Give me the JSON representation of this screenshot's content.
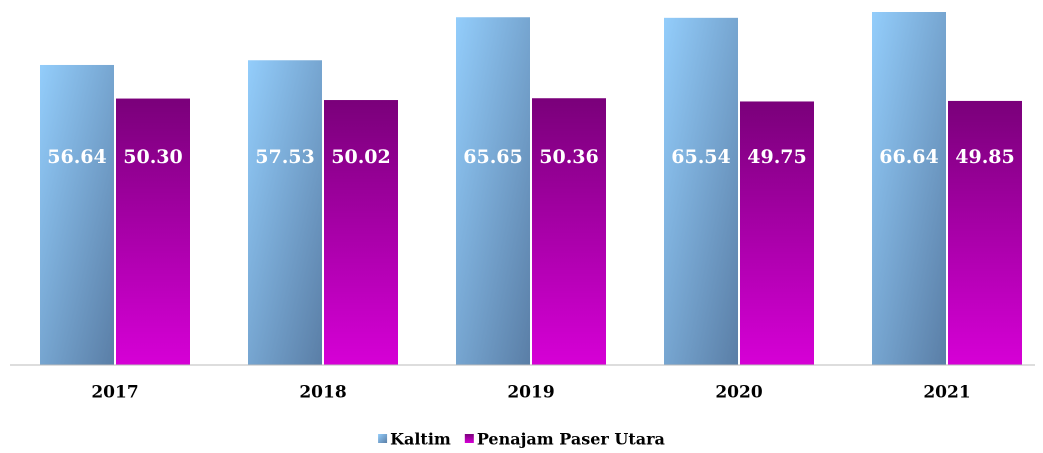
{
  "chart_data": {
    "type": "bar",
    "categories": [
      "2017",
      "2018",
      "2019",
      "2020",
      "2021"
    ],
    "series": [
      {
        "name": "Kaltim",
        "color": "#7fb6e8",
        "values": [
          56.64,
          57.53,
          65.65,
          65.54,
          66.64
        ]
      },
      {
        "name": "Penajam Paser Utara",
        "color": "#a000a0",
        "values": [
          50.3,
          50.02,
          50.36,
          49.75,
          49.85
        ],
        "value_labels": [
          "50.30",
          "50.02",
          "50.36",
          "49.75",
          "49.85"
        ]
      }
    ],
    "legend": "bottom"
  }
}
